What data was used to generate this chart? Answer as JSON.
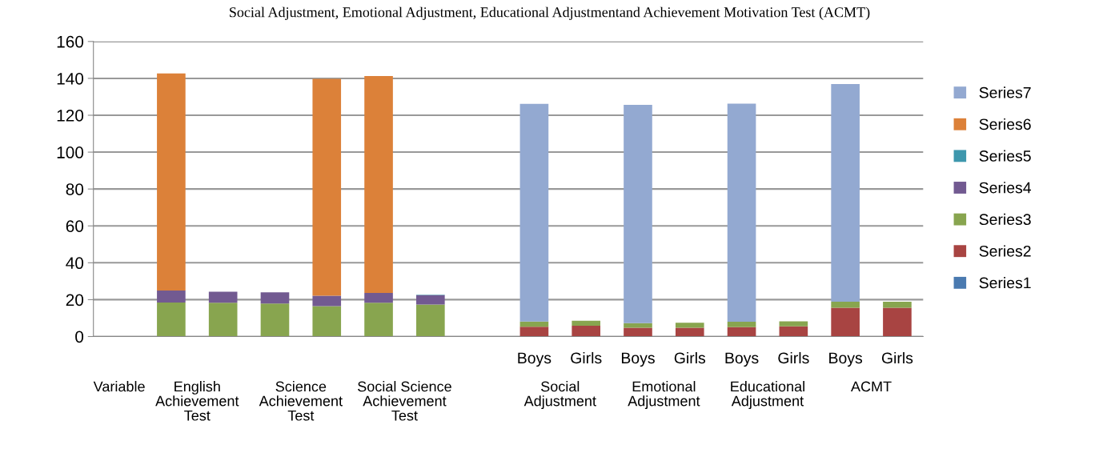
{
  "chart_data": {
    "type": "bar",
    "stacked": true,
    "title": "Social Adjustment, Emotional Adjustment, Educational Adjustmentand Achievement Motivation Test (ACMT)",
    "categories": [
      null,
      null,
      null,
      null,
      null,
      null,
      null,
      null,
      "Boys",
      "Girls",
      "Boys",
      "Girls",
      "Boys",
      "Girls",
      "Boys",
      "Girls"
    ],
    "series": [
      {
        "name": "Series1",
        "color": "#4a7ab0",
        "values": [
          null,
          null,
          null,
          null,
          null,
          null,
          null,
          null,
          null,
          null,
          null,
          null,
          null,
          null,
          null,
          null
        ]
      },
      {
        "name": "Series2",
        "color": "#a84442",
        "values": [
          null,
          null,
          null,
          null,
          null,
          null,
          null,
          null,
          5.3,
          5.8,
          4.8,
          4.8,
          5.1,
          5.5,
          15.6,
          15.6
        ]
      },
      {
        "name": "Series3",
        "color": "#88a54f",
        "values": [
          null,
          18.4,
          18.3,
          17.9,
          16.5,
          18.3,
          17.3,
          null,
          2.8,
          2.8,
          2.5,
          2.7,
          2.9,
          2.7,
          3.3,
          3.3
        ]
      },
      {
        "name": "Series4",
        "color": "#725a91",
        "values": [
          null,
          6.6,
          6.0,
          6.1,
          5.6,
          5.3,
          5.1,
          null,
          null,
          null,
          null,
          null,
          null,
          null,
          null,
          null
        ]
      },
      {
        "name": "Series5",
        "color": "#3e97ad",
        "values": [
          null,
          null,
          null,
          null,
          null,
          null,
          0.3,
          null,
          null,
          null,
          null,
          null,
          null,
          null,
          null,
          null
        ]
      },
      {
        "name": "Series6",
        "color": "#dc8139",
        "values": [
          0,
          117.7,
          null,
          null,
          117.6,
          117.7,
          null,
          null,
          null,
          null,
          null,
          null,
          null,
          null,
          null,
          null
        ]
      },
      {
        "name": "Series7",
        "color": "#93a9d1",
        "values": [
          null,
          null,
          null,
          null,
          null,
          null,
          null,
          null,
          118.1,
          null,
          118.3,
          null,
          118.3,
          null,
          118.0,
          null
        ]
      }
    ],
    "ylim": [
      0,
      160
    ],
    "yticks": [
      0,
      20,
      40,
      60,
      80,
      100,
      120,
      140,
      160
    ],
    "grid": "y",
    "legend": "right",
    "annotations": [
      "Variable",
      "English Achievement Test",
      "Science Achievement Test",
      "Social Science Achievement Test",
      "Social Adjustment",
      "Emotional Adjustment",
      "Educational Adjustment",
      "ACMT"
    ]
  }
}
